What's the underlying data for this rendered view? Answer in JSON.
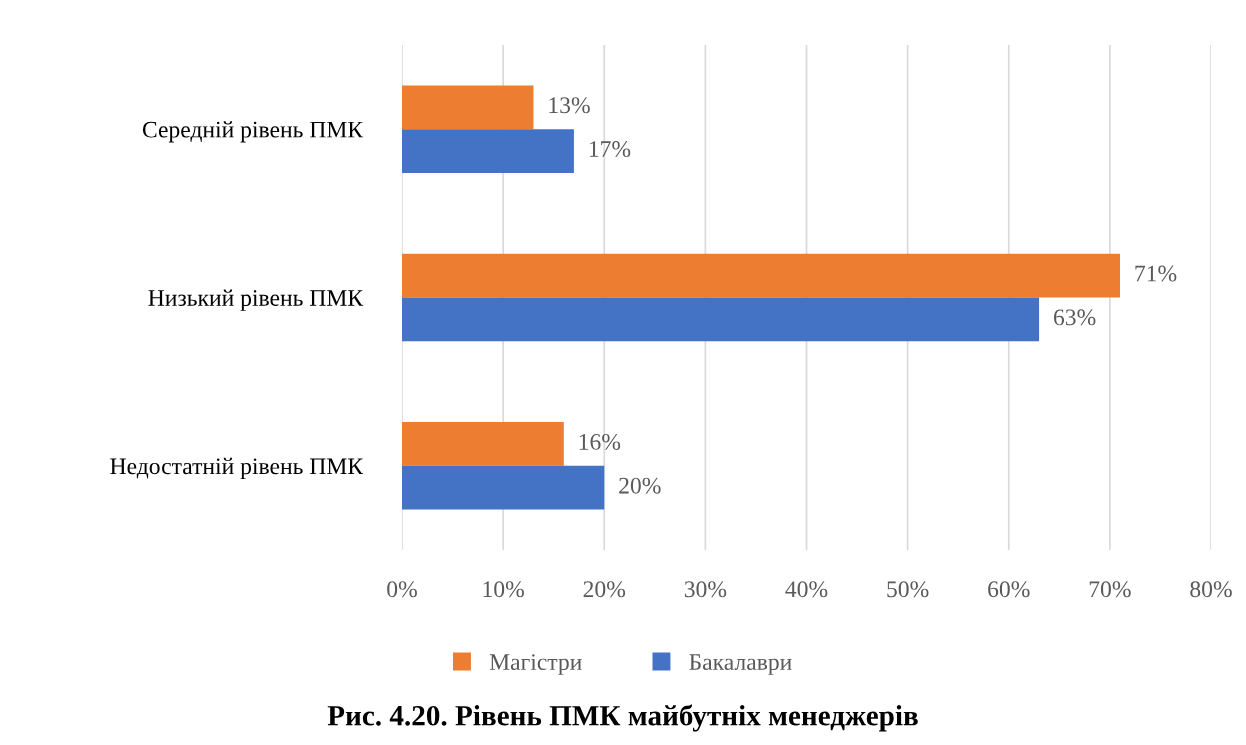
{
  "chart_data": {
    "type": "bar",
    "orientation": "horizontal",
    "title": "Рис. 4.20. Рівень ПМК майбутніх менеджерів",
    "categories": [
      "Середній рівень ПМК",
      "Низький рівень ПМК",
      "Недостатній рівень ПМК"
    ],
    "series": [
      {
        "name": "Магістри",
        "color": "#ed7d31",
        "values": [
          13,
          71,
          16
        ],
        "value_labels": [
          "13%",
          "71%",
          "16%"
        ]
      },
      {
        "name": "Бакалаври",
        "color": "#4472c4",
        "values": [
          17,
          63,
          20
        ],
        "value_labels": [
          "17%",
          "63%",
          "20%"
        ]
      }
    ],
    "xlim": [
      0,
      80
    ],
    "xticks": [
      {
        "value": 0,
        "label": "0%"
      },
      {
        "value": 10,
        "label": "10%"
      },
      {
        "value": 20,
        "label": "20%"
      },
      {
        "value": 30,
        "label": "30%"
      },
      {
        "value": 40,
        "label": "40%"
      },
      {
        "value": 50,
        "label": "50%"
      },
      {
        "value": 60,
        "label": "60%"
      },
      {
        "value": 70,
        "label": "70%"
      },
      {
        "value": 80,
        "label": "80%"
      }
    ],
    "grid": "x",
    "legend": "bottom"
  }
}
